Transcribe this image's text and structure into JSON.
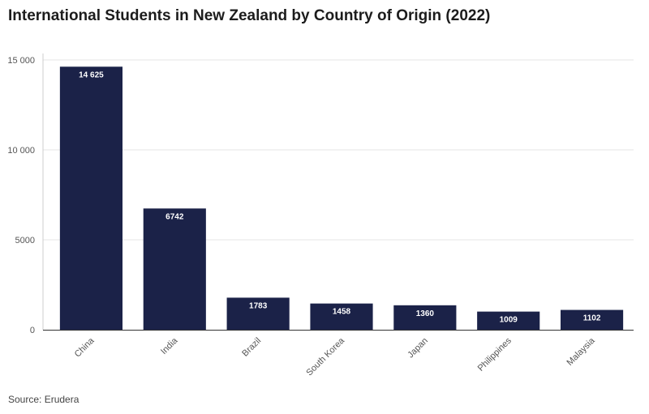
{
  "title": "International Students in New Zealand by Country of Origin (2022)",
  "source": "Source: Erudera",
  "colors": {
    "bar": "#1b2248",
    "grid": "#e6e6e6",
    "axis": "#333333"
  },
  "chart_data": {
    "type": "bar",
    "title": "International Students in New Zealand by Country of Origin (2022)",
    "categories": [
      "China",
      "India",
      "Brazil",
      "South Korea",
      "Japan",
      "Philippines",
      "Malaysia"
    ],
    "values": [
      14625,
      6742,
      1783,
      1458,
      1360,
      1009,
      1102
    ],
    "value_labels": [
      "14 625",
      "6742",
      "1783",
      "1458",
      "1360",
      "1009",
      "1102"
    ],
    "yticks": [
      0,
      5000,
      10000,
      15000
    ],
    "ytick_labels": [
      "0",
      "5000",
      "10 000",
      "15 000"
    ],
    "ylim": [
      0,
      15000
    ],
    "grid": true,
    "xlabel": "",
    "ylabel": ""
  }
}
